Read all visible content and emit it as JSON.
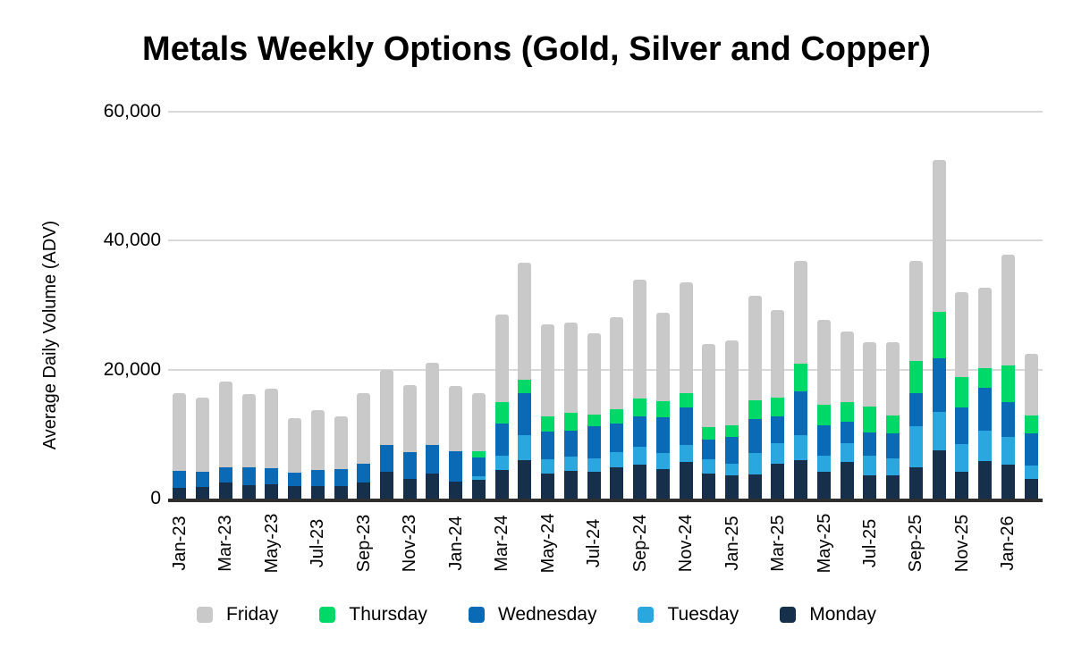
{
  "chart_data": {
    "type": "bar",
    "variant": "stacked",
    "title": "Metals Weekly Options (Gold, Silver and Copper)",
    "xlabel": "",
    "ylabel": "Average Daily Volume (ADV)",
    "ylim": [
      0,
      60000
    ],
    "grid": "horizontal",
    "legend_position": "bottom",
    "y_axis": {
      "ticks": [
        {
          "value": 0,
          "label": "0"
        },
        {
          "value": 20000,
          "label": "20,000"
        },
        {
          "value": 40000,
          "label": "40,000"
        },
        {
          "value": 60000,
          "label": "60,000"
        }
      ]
    },
    "x_axis": {
      "tick_every": 2
    },
    "categories": [
      "Jan-23",
      "Feb-23",
      "Mar-23",
      "Apr-23",
      "May-23",
      "Jun-23",
      "Jul-23",
      "Aug-23",
      "Sep-23",
      "Oct-23",
      "Nov-23",
      "Dec-23",
      "Jan-24",
      "Feb-24",
      "Mar-24",
      "Apr-24",
      "May-24",
      "Jun-24",
      "Jul-24",
      "Aug-24",
      "Sep-24",
      "Oct-24",
      "Nov-24",
      "Dec-24",
      "Jan-25",
      "Feb-25",
      "Mar-25",
      "Apr-25",
      "May-25",
      "Jun-25",
      "Jul-25",
      "Aug-25",
      "Sep-25",
      "Oct-25",
      "Nov-25",
      "Dec-25",
      "Jan-26",
      "Feb-26"
    ],
    "series": [
      {
        "name": "Monday",
        "color": "#16304b",
        "values": [
          1600,
          1800,
          2500,
          2100,
          2200,
          1900,
          1900,
          2000,
          2500,
          4100,
          3000,
          3900,
          2600,
          2900,
          4400,
          5900,
          3900,
          4300,
          4200,
          4800,
          5300,
          4600,
          5700,
          3900,
          3600,
          3700,
          5400,
          5900,
          4100,
          5700,
          3600,
          3600,
          4900,
          7500,
          4100,
          5800,
          5200,
          3100
        ]
      },
      {
        "name": "Tuesday",
        "color": "#2aa7df",
        "values": [
          0,
          0,
          0,
          0,
          0,
          0,
          0,
          0,
          0,
          0,
          0,
          0,
          0,
          600,
          2200,
          3900,
          2200,
          2200,
          2100,
          2400,
          2700,
          2500,
          2600,
          2200,
          1800,
          3400,
          3200,
          4000,
          2600,
          2900,
          3100,
          2600,
          6300,
          6000,
          4300,
          4800,
          4400,
          2000
        ]
      },
      {
        "name": "Wednesday",
        "color": "#0a6ab5",
        "values": [
          2700,
          2400,
          2400,
          2700,
          2500,
          2100,
          2600,
          2600,
          2900,
          4200,
          4200,
          4400,
          4700,
          2900,
          5000,
          6600,
          4300,
          4000,
          4900,
          4400,
          4700,
          5500,
          5800,
          3000,
          4100,
          5300,
          4100,
          6700,
          4600,
          3300,
          3600,
          3900,
          5100,
          8200,
          5700,
          6600,
          5400,
          5000
        ]
      },
      {
        "name": "Thursday",
        "color": "#00d967",
        "values": [
          0,
          0,
          0,
          0,
          0,
          0,
          0,
          0,
          0,
          0,
          0,
          0,
          0,
          1000,
          3400,
          2100,
          2400,
          2800,
          1800,
          2200,
          2800,
          2500,
          2200,
          2000,
          1900,
          2800,
          3000,
          4300,
          3300,
          3100,
          4000,
          2800,
          5000,
          7300,
          4700,
          3100,
          5600,
          2800
        ]
      },
      {
        "name": "Friday",
        "color": "#c9c9c9",
        "values": [
          12100,
          11500,
          13200,
          11400,
          12400,
          8500,
          9200,
          8200,
          10900,
          11600,
          10400,
          12700,
          10100,
          8900,
          13500,
          18100,
          14200,
          14000,
          12700,
          14300,
          18400,
          13700,
          17300,
          12900,
          13100,
          16300,
          13600,
          16000,
          13100,
          10900,
          10000,
          11300,
          15500,
          23500,
          13200,
          12400,
          17200,
          9600
        ]
      }
    ],
    "legend": [
      {
        "label": "Friday",
        "color": "#c9c9c9"
      },
      {
        "label": "Thursday",
        "color": "#00d967"
      },
      {
        "label": "Wednesday",
        "color": "#0a6ab5"
      },
      {
        "label": "Tuesday",
        "color": "#2aa7df"
      },
      {
        "label": "Monday",
        "color": "#16304b"
      }
    ],
    "colors": {
      "background": "#ffffff",
      "gridline": "#d9d9d9",
      "axis_line": "#2e2e2e",
      "text": "#000000"
    }
  }
}
